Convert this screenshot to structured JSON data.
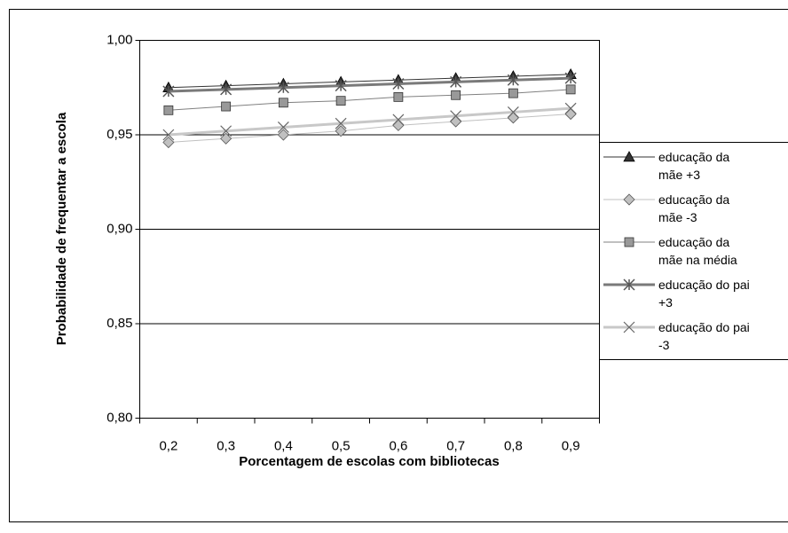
{
  "chart_data": {
    "type": "line",
    "x_label": "Porcentagem de escolas com bibliotecas",
    "y_label": "Probabilidade de frequentar a escola",
    "categories": [
      "0,2",
      "0,3",
      "0,4",
      "0,5",
      "0,6",
      "0,7",
      "0,8",
      "0,9"
    ],
    "ylim": [
      0.8,
      1.0
    ],
    "yticks": [
      {
        "value": 0.8,
        "label": "0,80"
      },
      {
        "value": 0.85,
        "label": "0,85"
      },
      {
        "value": 0.9,
        "label": "0,90"
      },
      {
        "value": 0.95,
        "label": "0,95"
      },
      {
        "value": 1.0,
        "label": "1,00"
      }
    ],
    "grid": true,
    "legend": "right",
    "series": [
      {
        "name": "educação da mãe +3",
        "color": "#333333",
        "marker": "triangle",
        "values": [
          0.975,
          0.976,
          0.977,
          0.978,
          0.979,
          0.98,
          0.981,
          0.982
        ]
      },
      {
        "name": "educação da mãe -3",
        "color": "#c0c0c0",
        "marker": "diamond",
        "values": [
          0.946,
          0.948,
          0.95,
          0.952,
          0.955,
          0.957,
          0.959,
          0.961
        ]
      },
      {
        "name": "educação da mãe na média",
        "color": "#808080",
        "marker": "square",
        "values": [
          0.963,
          0.965,
          0.967,
          0.968,
          0.97,
          0.971,
          0.972,
          0.974
        ]
      },
      {
        "name": "educação do pai +3",
        "color": "#7a7a7a",
        "marker": "star",
        "values": [
          0.973,
          0.974,
          0.975,
          0.976,
          0.977,
          0.978,
          0.979,
          0.98
        ]
      },
      {
        "name": "educação do pai -3",
        "color": "#c8c8c8",
        "marker": "x",
        "values": [
          0.95,
          0.952,
          0.954,
          0.956,
          0.958,
          0.96,
          0.962,
          0.964
        ]
      }
    ]
  }
}
